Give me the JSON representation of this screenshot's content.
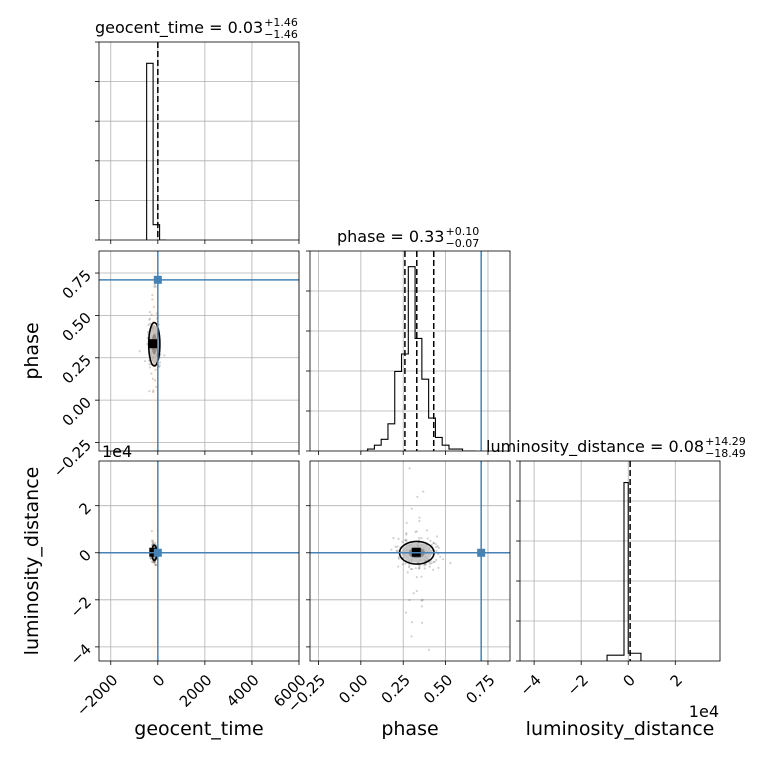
{
  "chart_data": {
    "type": "corner",
    "parameters": [
      "geocent_time",
      "phase",
      "luminosity_distance"
    ],
    "axes": {
      "geocent_time": {
        "range": [
          -2500,
          6000
        ],
        "ticks": [
          -2000,
          0,
          2000,
          4000,
          6000
        ],
        "tick_labels": [
          "−2000",
          "0",
          "2000",
          "4000",
          "6000"
        ]
      },
      "phase": {
        "range": [
          -0.3,
          0.88
        ],
        "ticks": [
          -0.25,
          0.0,
          0.25,
          0.5,
          0.75
        ],
        "tick_labels": [
          "−0.25",
          "0.00",
          "0.25",
          "0.50",
          "0.75"
        ]
      },
      "luminosity_distance": {
        "range": [
          -4.6,
          3.9
        ],
        "ticks": [
          -4,
          -2,
          0,
          2
        ],
        "tick_labels": [
          "−4",
          "−2",
          "0",
          "2"
        ],
        "offset_label": "1e4"
      }
    },
    "titles": [
      {
        "param": "geocent_time",
        "label": "geocent_time = 0.03",
        "plus": "+1.46",
        "minus": "−1.46"
      },
      {
        "param": "phase",
        "label": "phase = 0.33",
        "plus": "+0.10",
        "minus": "−0.07"
      },
      {
        "param": "luminosity_distance",
        "label": "luminosity_distance = 0.08",
        "plus": "+14.29",
        "minus": "−18.49"
      }
    ],
    "truth": {
      "geocent_time": 0,
      "phase": 0.71,
      "luminosity_distance": 0
    },
    "truth_color": "#4682b4",
    "quantiles": {
      "phase": [
        0.26,
        0.33,
        0.43
      ],
      "geocent_time": [
        0.03
      ],
      "luminosity_distance": [
        0.08
      ]
    },
    "histograms": {
      "geocent_time": {
        "edges": [
          -475,
          -200,
          75,
          350
        ],
        "counts": [
          0.92,
          0.08,
          0.0
        ]
      },
      "phase": {
        "edges": [
          0.0,
          0.04,
          0.08,
          0.12,
          0.16,
          0.2,
          0.24,
          0.28,
          0.32,
          0.36,
          0.4,
          0.44,
          0.48,
          0.52,
          0.56,
          0.6,
          0.64,
          0.68
        ],
        "counts": [
          0.0,
          0.01,
          0.03,
          0.06,
          0.14,
          0.41,
          0.5,
          0.95,
          0.58,
          0.37,
          0.17,
          0.07,
          0.03,
          0.01,
          0.01,
          0.0,
          0.0
        ]
      },
      "luminosity_distance": {
        "edges": [
          -0.9,
          -0.18,
          0.0,
          0.54
        ],
        "counts": [
          0.03,
          0.92,
          0.04
        ]
      }
    },
    "scatter": {
      "geocent_time_vs_phase": {
        "center": [
          -150,
          0.33
        ],
        "spread": [
          140,
          0.08
        ]
      },
      "phase_vs_luminosity_distance": {
        "center": [
          0.33,
          0.0
        ],
        "spread": [
          0.06,
          0.3
        ]
      },
      "geocent_time_vs_luminosity_distance": {
        "center": [
          -150,
          0.0
        ],
        "spread": [
          60,
          0.2
        ]
      }
    },
    "grid": true
  }
}
